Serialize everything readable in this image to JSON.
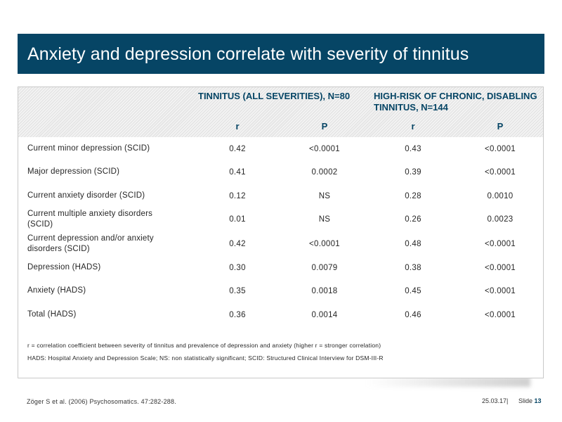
{
  "title": "Anxiety and depression correlate with severity of tinnitus",
  "table": {
    "group1": "TINNITUS (ALL SEVERITIES), N=80",
    "group2": "HIGH-RISK OF CHRONIC, DISABLING TINNITUS, N=144",
    "col_r": "r",
    "col_p": "P",
    "rows": [
      {
        "label": "Current minor depression (SCID)",
        "r1": "0.42",
        "p1": "<0.0001",
        "r2": "0.43",
        "p2": "<0.0001"
      },
      {
        "label": "Major depression (SCID)",
        "r1": "0.41",
        "p1": "0.0002",
        "r2": "0.39",
        "p2": "<0.0001"
      },
      {
        "label": "Current anxiety disorder (SCID)",
        "r1": "0.12",
        "p1": "NS",
        "r2": "0.28",
        "p2": "0.0010"
      },
      {
        "label": "Current multiple anxiety disorders (SCID)",
        "r1": "0.01",
        "p1": "NS",
        "r2": "0.26",
        "p2": "0.0023"
      },
      {
        "label": "Current depression and/or anxiety disorders (SCID)",
        "r1": "0.42",
        "p1": "<0.0001",
        "r2": "0.48",
        "p2": "<0.0001"
      },
      {
        "label": "Depression (HADS)",
        "r1": "0.30",
        "p1": "0.0079",
        "r2": "0.38",
        "p2": "<0.0001"
      },
      {
        "label": "Anxiety (HADS)",
        "r1": "0.35",
        "p1": "0.0018",
        "r2": "0.45",
        "p2": "<0.0001"
      },
      {
        "label": "Total (HADS)",
        "r1": "0.36",
        "p1": "0.0014",
        "r2": "0.46",
        "p2": "<0.0001"
      }
    ],
    "notes": [
      "r = correlation coefficient between severity of tinnitus and prevalence of depression and anxiety (higher r = stronger correlation)",
      "HADS: Hospital Anxiety and Depression Scale; NS: non statistically significant; SCID: Structured Clinical Interview for DSM-III-R"
    ]
  },
  "footer": {
    "reference": "Zöger S et al. (2006) Psychosomatics. 47:282-288.",
    "date": "25.03.17|",
    "slide_label": "Slide",
    "slide_number": "13"
  },
  "colors": {
    "title_bar": "#064565",
    "header_text": "#064565"
  }
}
